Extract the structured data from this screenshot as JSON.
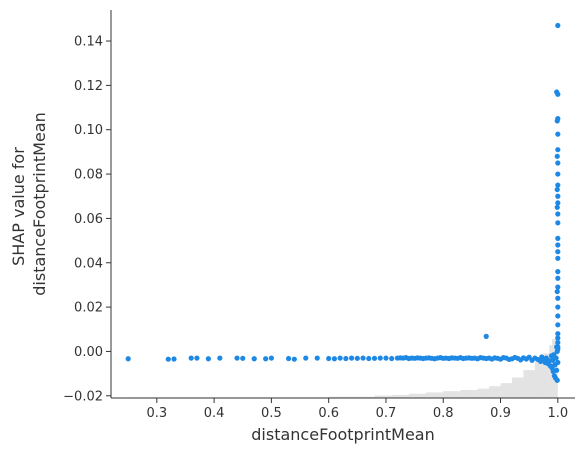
{
  "chart_data": {
    "type": "scatter",
    "title": "",
    "xlabel": "distanceFootprintMean",
    "ylabel_lines": [
      "SHAP value for",
      "distanceFootprintMean"
    ],
    "xlim": [
      0.22,
      1.03
    ],
    "ylim": [
      -0.021,
      0.154
    ],
    "x_ticks": [
      0.3,
      0.4,
      0.5,
      0.6,
      0.7,
      0.8,
      0.9,
      1.0
    ],
    "x_tick_labels": [
      "0.3",
      "0.4",
      "0.5",
      "0.6",
      "0.7",
      "0.8",
      "0.9",
      "1.0"
    ],
    "y_ticks": [
      -0.02,
      0.0,
      0.02,
      0.04,
      0.06,
      0.08,
      0.1,
      0.12,
      0.14
    ],
    "y_tick_labels": [
      "−0.02",
      "0.00",
      "0.02",
      "0.04",
      "0.06",
      "0.08",
      "0.10",
      "0.12",
      "0.14"
    ],
    "point_color": "#1e88e5",
    "histogram_color": "#cccccc",
    "histogram": {
      "bins_x_start": [
        0.25,
        0.3,
        0.35,
        0.4,
        0.45,
        0.5,
        0.55,
        0.6,
        0.65,
        0.68,
        0.71,
        0.74,
        0.77,
        0.8,
        0.83,
        0.86,
        0.88,
        0.9,
        0.92,
        0.94,
        0.96,
        0.975,
        0.985,
        0.99,
        0.995
      ],
      "bin_width": [
        0.05,
        0.05,
        0.05,
        0.05,
        0.05,
        0.05,
        0.05,
        0.05,
        0.03,
        0.03,
        0.03,
        0.03,
        0.03,
        0.03,
        0.03,
        0.02,
        0.02,
        0.02,
        0.02,
        0.02,
        0.015,
        0.01,
        0.005,
        0.005,
        0.005
      ],
      "relative_height": [
        0.01,
        0.01,
        0.01,
        0.01,
        0.01,
        0.01,
        0.01,
        0.02,
        0.02,
        0.04,
        0.05,
        0.07,
        0.09,
        0.11,
        0.13,
        0.15,
        0.19,
        0.24,
        0.33,
        0.45,
        0.58,
        0.72,
        0.85,
        0.95,
        1.0
      ]
    },
    "series": [
      {
        "name": "SHAP value",
        "points": [
          [
            0.25,
            -0.0033
          ],
          [
            0.32,
            -0.0035
          ],
          [
            0.33,
            -0.0034
          ],
          [
            0.36,
            -0.003
          ],
          [
            0.37,
            -0.003
          ],
          [
            0.39,
            -0.0033
          ],
          [
            0.41,
            -0.003
          ],
          [
            0.44,
            -0.003
          ],
          [
            0.45,
            -0.0031
          ],
          [
            0.47,
            -0.0033
          ],
          [
            0.49,
            -0.0033
          ],
          [
            0.5,
            -0.003
          ],
          [
            0.53,
            -0.0032
          ],
          [
            0.54,
            -0.0035
          ],
          [
            0.56,
            -0.003
          ],
          [
            0.58,
            -0.003
          ],
          [
            0.6,
            -0.0032
          ],
          [
            0.61,
            -0.0033
          ],
          [
            0.62,
            -0.003
          ],
          [
            0.63,
            -0.0032
          ],
          [
            0.64,
            -0.003
          ],
          [
            0.65,
            -0.0031
          ],
          [
            0.66,
            -0.003
          ],
          [
            0.67,
            -0.0032
          ],
          [
            0.68,
            -0.0031
          ],
          [
            0.69,
            -0.003
          ],
          [
            0.7,
            -0.003
          ],
          [
            0.71,
            -0.0032
          ],
          [
            0.72,
            -0.003
          ],
          [
            0.725,
            -0.0029
          ],
          [
            0.73,
            -0.003
          ],
          [
            0.735,
            -0.0028
          ],
          [
            0.74,
            -0.0032
          ],
          [
            0.745,
            -0.003
          ],
          [
            0.75,
            -0.0031
          ],
          [
            0.755,
            -0.0029
          ],
          [
            0.76,
            -0.003
          ],
          [
            0.765,
            -0.0032
          ],
          [
            0.77,
            -0.003
          ],
          [
            0.775,
            -0.0029
          ],
          [
            0.78,
            -0.0031
          ],
          [
            0.785,
            -0.0033
          ],
          [
            0.79,
            -0.003
          ],
          [
            0.795,
            -0.0028
          ],
          [
            0.8,
            -0.0031
          ],
          [
            0.805,
            -0.003
          ],
          [
            0.81,
            -0.0032
          ],
          [
            0.815,
            -0.0029
          ],
          [
            0.82,
            -0.003
          ],
          [
            0.825,
            -0.0031
          ],
          [
            0.83,
            -0.0028
          ],
          [
            0.835,
            -0.0032
          ],
          [
            0.84,
            -0.003
          ],
          [
            0.845,
            -0.0029
          ],
          [
            0.85,
            -0.0031
          ],
          [
            0.855,
            -0.003
          ],
          [
            0.86,
            -0.0033
          ],
          [
            0.865,
            -0.0028
          ],
          [
            0.87,
            -0.003
          ],
          [
            0.875,
            -0.0032
          ],
          [
            0.88,
            -0.003
          ],
          [
            0.885,
            -0.0034
          ],
          [
            0.89,
            -0.0029
          ],
          [
            0.895,
            -0.0031
          ],
          [
            0.9,
            -0.0035
          ],
          [
            0.905,
            -0.0028
          ],
          [
            0.91,
            -0.003
          ],
          [
            0.915,
            -0.0036
          ],
          [
            0.92,
            -0.0033
          ],
          [
            0.925,
            -0.0027
          ],
          [
            0.93,
            -0.0031
          ],
          [
            0.935,
            -0.0038
          ],
          [
            0.94,
            -0.0029
          ],
          [
            0.945,
            -0.0034
          ],
          [
            0.95,
            -0.0026
          ],
          [
            0.955,
            -0.004
          ],
          [
            0.96,
            -0.003
          ],
          [
            0.965,
            -0.0036
          ],
          [
            0.97,
            -0.0045
          ],
          [
            0.972,
            -0.0025
          ],
          [
            0.975,
            -0.0038
          ],
          [
            0.978,
            -0.005
          ],
          [
            0.98,
            -0.003
          ],
          [
            0.983,
            -0.0055
          ],
          [
            0.985,
            -0.0042
          ],
          [
            0.987,
            -0.0065
          ],
          [
            0.989,
            -0.002
          ],
          [
            0.99,
            -0.0075
          ],
          [
            0.991,
            -0.004
          ],
          [
            0.992,
            -0.009
          ],
          [
            0.993,
            -0.0015
          ],
          [
            0.994,
            -0.011
          ],
          [
            0.995,
            -0.006
          ],
          [
            0.996,
            -0.012
          ],
          [
            0.997,
            -0.003
          ],
          [
            0.998,
            -0.0085
          ],
          [
            0.999,
            -0.013
          ],
          [
            1.0,
            -0.005
          ],
          [
            0.999,
            0.0
          ],
          [
            0.998,
            0.002
          ],
          [
            0.875,
            0.0068
          ],
          [
            1.0,
            0.147
          ],
          [
            0.998,
            0.117
          ],
          [
            1.0,
            0.116
          ],
          [
            1.0,
            0.105
          ],
          [
            0.999,
            0.104
          ],
          [
            1.0,
            0.098
          ],
          [
            1.0,
            0.091
          ],
          [
            0.999,
            0.088
          ],
          [
            1.0,
            0.085
          ],
          [
            1.0,
            0.08
          ],
          [
            1.0,
            0.075
          ],
          [
            0.999,
            0.073
          ],
          [
            1.0,
            0.07
          ],
          [
            1.0,
            0.067
          ],
          [
            0.999,
            0.065
          ],
          [
            1.0,
            0.062
          ],
          [
            1.0,
            0.058
          ],
          [
            1.0,
            0.051
          ],
          [
            1.0,
            0.048
          ],
          [
            1.0,
            0.045
          ],
          [
            1.0,
            0.042
          ],
          [
            1.0,
            0.036
          ],
          [
            1.0,
            0.033
          ],
          [
            1.0,
            0.029
          ],
          [
            0.999,
            0.027
          ],
          [
            1.0,
            0.024
          ],
          [
            1.0,
            0.02
          ],
          [
            1.0,
            0.016
          ],
          [
            1.0,
            0.012
          ],
          [
            1.0,
            0.008
          ],
          [
            1.0,
            0.006
          ],
          [
            1.0,
            0.004
          ],
          [
            1.0,
            0.002
          ],
          [
            1.0,
            0.001
          ]
        ]
      }
    ]
  }
}
